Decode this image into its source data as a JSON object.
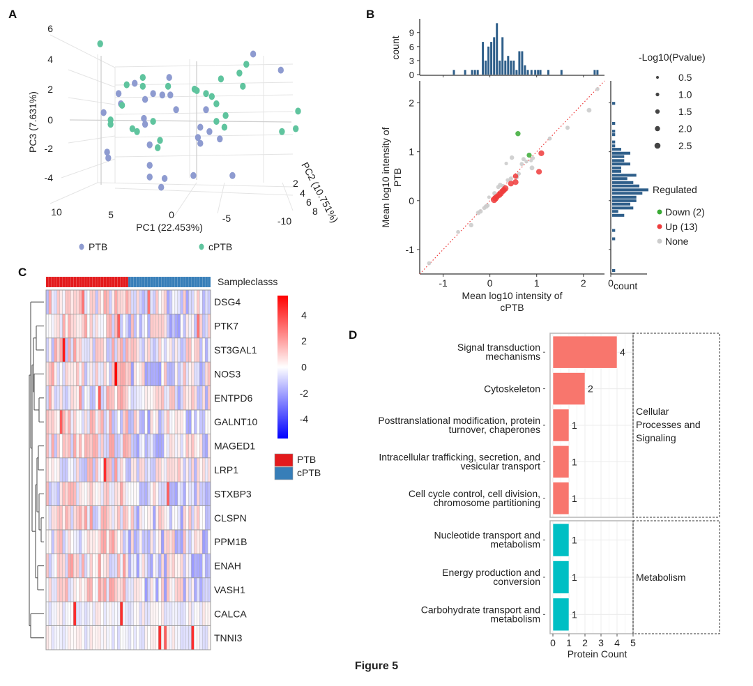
{
  "figure_caption": "Figure 5",
  "chart_data": [
    {
      "panel": "A",
      "type": "scatter",
      "subtype": "3d-pca",
      "title": "",
      "xlabel": "PC1 (22.453%)",
      "ylabel": "PC3 (7.631%)",
      "zlabel": "PC2 (10.751%)",
      "x_ticks": [
        "10",
        "5",
        "0",
        "-5",
        "-10"
      ],
      "y_ticks": [
        "6",
        "4",
        "2",
        "0",
        "-2",
        "-4"
      ],
      "z_ticks": [
        "2",
        "4",
        "6",
        "8"
      ],
      "xlim": [
        10,
        -10
      ],
      "ylim": [
        -5,
        6
      ],
      "legend": [
        {
          "label": "PTB",
          "color": "#8e9bd0"
        },
        {
          "label": "cPTB",
          "color": "#5fc49e"
        }
      ],
      "legend_position": "bottom",
      "series": [
        {
          "name": "PTB",
          "points": [
            [
              -7.1,
              4.5
            ],
            [
              -9.5,
              3.4
            ],
            [
              3.2,
              2.5
            ],
            [
              4.6,
              1.8
            ],
            [
              1.6,
              1.8
            ],
            [
              0.2,
              2.9
            ],
            [
              2.3,
              1.4
            ],
            [
              0.8,
              1.7
            ],
            [
              0.1,
              1.7
            ],
            [
              4.4,
              1.1
            ],
            [
              -0.4,
              0.7
            ],
            [
              -3.0,
              0.7
            ],
            [
              5.9,
              0.5
            ],
            [
              2.4,
              0.1
            ],
            [
              2.3,
              -0.3
            ],
            [
              -2.5,
              -0.5
            ],
            [
              -3.3,
              -0.8
            ],
            [
              -4.2,
              -1.3
            ],
            [
              -2.3,
              -1.2
            ],
            [
              -2.5,
              -1.6
            ],
            [
              1.9,
              -1.7
            ],
            [
              5.6,
              -2.2
            ],
            [
              5.5,
              -2.6
            ],
            [
              1.9,
              -3.1
            ],
            [
              1.9,
              -3.9
            ],
            [
              0.6,
              -4.0
            ],
            [
              -1.9,
              -3.8
            ],
            [
              -5.3,
              -3.8
            ],
            [
              0.9,
              -4.6
            ]
          ]
        },
        {
          "name": "cPTB",
          "points": [
            [
              6.2,
              5.2
            ],
            [
              -6.5,
              3.8
            ],
            [
              -5.9,
              3.2
            ],
            [
              -4.3,
              2.8
            ],
            [
              -6.2,
              2.3
            ],
            [
              2.5,
              2.9
            ],
            [
              2.5,
              2.3
            ],
            [
              0.3,
              2.3
            ],
            [
              3.9,
              2.4
            ],
            [
              -2.0,
              2.1
            ],
            [
              -2.2,
              2.0
            ],
            [
              -3.0,
              1.8
            ],
            [
              -3.5,
              1.6
            ],
            [
              -3.9,
              1.1
            ],
            [
              4.3,
              1.0
            ],
            [
              -11.0,
              0.6
            ],
            [
              -4.7,
              0.3
            ],
            [
              5.3,
              0.0
            ],
            [
              1.6,
              -0.1
            ],
            [
              -3.9,
              -0.1
            ],
            [
              -4.6,
              -0.5
            ],
            [
              5.3,
              -0.3
            ],
            [
              3.4,
              -0.6
            ],
            [
              3.0,
              -0.8
            ],
            [
              -9.6,
              -0.8
            ],
            [
              -10.8,
              -0.6
            ],
            [
              1.0,
              -1.4
            ],
            [
              1.2,
              -1.9
            ]
          ]
        }
      ]
    },
    {
      "panel": "B",
      "type": "scatter",
      "xlabel": "Mean log10 intensity of cPTB",
      "ylabel": "Mean log10 intensity of PTB",
      "xlim": [
        -1.5,
        2.45
      ],
      "ylim": [
        -1.5,
        2.45
      ],
      "x_ticks": [
        "-1",
        "0",
        "1",
        "2"
      ],
      "y_ticks": [
        "-1",
        "0",
        "1",
        "2"
      ],
      "reference_line": "y = x (red dotted)",
      "size_legend_title": "-Log10(Pvalue)",
      "size_legend": [
        "0.5",
        "1.0",
        "1.5",
        "2.0",
        "2.5"
      ],
      "color_legend_title": "Regulated",
      "color_legend": [
        {
          "label": "Down (2)",
          "color": "#3aaa35"
        },
        {
          "label": "Up (13)",
          "color": "#ee3b3b"
        },
        {
          "label": "None",
          "color": "#cccccc"
        }
      ],
      "legend_position": "right",
      "series": [
        {
          "name": "Down",
          "color": "#3aaa35",
          "points": [
            [
              0.6,
              1.37,
              1.6
            ],
            [
              0.84,
              0.93,
              1.5
            ]
          ]
        },
        {
          "name": "Up",
          "color": "#ee3b3b",
          "points": [
            [
              1.1,
              0.97,
              2.0
            ],
            [
              1.05,
              0.59,
              1.9
            ],
            [
              0.55,
              0.5,
              1.7
            ],
            [
              0.55,
              0.38,
              2.0
            ],
            [
              0.45,
              0.35,
              1.9
            ],
            [
              0.33,
              0.25,
              2.2
            ],
            [
              0.28,
              0.2,
              2.1
            ],
            [
              0.23,
              0.15,
              2.3
            ],
            [
              0.2,
              0.12,
              2.2
            ],
            [
              0.15,
              0.08,
              2.0
            ],
            [
              0.12,
              0.05,
              2.4
            ],
            [
              0.09,
              0.02,
              2.5
            ],
            [
              0.3,
              0.22,
              2.0
            ]
          ]
        },
        {
          "name": "None",
          "color": "#cccccc",
          "points": [
            [
              2.12,
              1.85,
              1.4
            ],
            [
              1.66,
              1.49,
              1.1
            ],
            [
              1.28,
              1.27,
              1.0
            ],
            [
              2.3,
              2.28,
              0.9
            ],
            [
              0.47,
              0.88,
              1.2
            ],
            [
              0.35,
              0.76,
              0.8
            ],
            [
              0.9,
              0.67,
              1.4
            ],
            [
              0.78,
              0.8,
              0.9
            ],
            [
              0.68,
              0.75,
              1.0
            ],
            [
              0.88,
              0.82,
              0.8
            ],
            [
              0.92,
              0.87,
              0.9
            ],
            [
              0.72,
              0.85,
              1.1
            ],
            [
              0.62,
              0.55,
              0.9
            ],
            [
              0.58,
              0.48,
              1.0
            ],
            [
              0.45,
              0.45,
              1.2
            ],
            [
              0.38,
              0.42,
              0.9
            ],
            [
              0.28,
              0.3,
              1.0
            ],
            [
              0.22,
              0.32,
              1.3
            ],
            [
              0.18,
              0.28,
              1.1
            ],
            [
              0.1,
              0.15,
              1.2
            ],
            [
              -0.02,
              0.07,
              0.7
            ],
            [
              -0.05,
              -0.1,
              1.1
            ],
            [
              -0.08,
              -0.12,
              1.3
            ],
            [
              -0.12,
              -0.15,
              1.0
            ],
            [
              -0.2,
              -0.22,
              1.2
            ],
            [
              -0.25,
              -0.25,
              1.2
            ],
            [
              -0.4,
              -0.5,
              1.2
            ],
            [
              -0.68,
              -0.64,
              0.9
            ],
            [
              -1.3,
              -1.28,
              1.0
            ]
          ]
        }
      ],
      "top_histogram": {
        "ylabel": "count",
        "y_ticks": [
          "0",
          "3",
          "6",
          "9"
        ],
        "bin_centers": [
          -0.77,
          -0.53,
          -0.38,
          -0.32,
          -0.26,
          -0.15,
          -0.09,
          -0.03,
          0.03,
          0.09,
          0.15,
          0.21,
          0.27,
          0.33,
          0.39,
          0.45,
          0.51,
          0.57,
          0.63,
          0.69,
          0.75,
          0.81,
          0.89,
          0.97,
          1.03,
          1.08,
          1.25,
          1.53,
          2.24,
          2.3
        ],
        "counts": [
          1,
          1,
          1,
          1,
          1,
          7,
          3,
          6,
          7,
          8,
          11,
          3,
          8,
          3,
          4,
          3,
          3,
          1,
          5,
          5,
          2,
          1,
          1,
          1,
          1,
          1,
          1,
          1,
          1,
          1
        ]
      },
      "right_histogram": {
        "xlabel": "count",
        "x_ticks": [
          "0"
        ],
        "bin_centers": [
          -1.43,
          -0.78,
          -0.61,
          -0.3,
          -0.22,
          -0.15,
          -0.07,
          0.0,
          0.07,
          0.15,
          0.22,
          0.3,
          0.37,
          0.45,
          0.52,
          0.6,
          0.67,
          0.75,
          0.82,
          0.9,
          0.97,
          1.05,
          1.12,
          1.2,
          1.35,
          1.42,
          1.58,
          1.99
        ],
        "counts": [
          1,
          1,
          1,
          4,
          2,
          7,
          6,
          8,
          8,
          10,
          12,
          9,
          7,
          5,
          8,
          3,
          3,
          6,
          4,
          4,
          6,
          3,
          1,
          1,
          1,
          1,
          1,
          1
        ]
      }
    },
    {
      "panel": "C",
      "type": "heatmap",
      "annotation_title": "Sampleclasss",
      "rows": [
        "DSG4",
        "PTK7",
        "ST3GAL1",
        "NOS3",
        "ENTPD6",
        "GALNT10",
        "MAGED1",
        "LRP1",
        "STXBP3",
        "CLSPN",
        "PPM1B",
        "ENAH",
        "VASH1",
        "CALCA",
        "TNNI3"
      ],
      "n_columns": 60,
      "n_PTB": 30,
      "n_cPTB": 30,
      "colorbar_ticks": [
        "4",
        "2",
        "0",
        "-2",
        "-4"
      ],
      "color_range": [
        -5.5,
        5.5
      ],
      "colorbar_colors": {
        "low": "#0000ff",
        "mid": "#ffffff",
        "high": "#ff0000"
      },
      "class_legend": [
        {
          "label": "PTB",
          "color": "#e31a1c"
        },
        {
          "label": "cPTB",
          "color": "#377eb8"
        }
      ],
      "highlights": [
        {
          "row": "ST3GAL1",
          "col": 6,
          "value": 5.0
        },
        {
          "row": "NOS3",
          "col": 25,
          "value": 5.5
        },
        {
          "row": "LRP1",
          "col": 21,
          "value": 4.5
        },
        {
          "row": "STXBP3",
          "col": 44,
          "value": 3.5
        },
        {
          "row": "CALCA",
          "col": 10,
          "value": 4.5
        },
        {
          "row": "CALCA",
          "col": 27,
          "value": 4.5
        },
        {
          "row": "TNNI3",
          "col": 41,
          "value": 4.5
        },
        {
          "row": "TNNI3",
          "col": 43,
          "value": 3.5
        },
        {
          "row": "TNNI3",
          "col": 53,
          "value": 4.5
        },
        {
          "row": "DSG4",
          "col": 13,
          "value": 3.0
        },
        {
          "row": "DSG4",
          "col": 37,
          "value": 3.0
        },
        {
          "row": "PTK7",
          "col": 26,
          "value": 3.5
        },
        {
          "row": "PTK7",
          "col": 55,
          "value": 3.0
        },
        {
          "row": "ENTPD6",
          "col": 19,
          "value": 3.5
        },
        {
          "row": "GALNT10",
          "col": 5,
          "value": 3.5
        }
      ]
    },
    {
      "panel": "D",
      "type": "bar",
      "orientation": "horizontal",
      "xlabel": "Protein Count",
      "x_ticks": [
        "0",
        "1",
        "2",
        "3",
        "4",
        "5"
      ],
      "xlim": [
        0,
        5
      ],
      "groups": [
        {
          "name": "Cellular Processes and Signaling",
          "color": "#f8766d",
          "categories": [
            "Signal transduction mechanisms",
            "Cytoskeleton",
            "Posttranslational modification, protein turnover, chaperones",
            "Intracellular trafficking, secretion, and vesicular transport",
            "Cell cycle control, cell division, chromosome partitioning"
          ],
          "values": [
            4,
            2,
            1,
            1,
            1
          ]
        },
        {
          "name": "Metabolism",
          "color": "#00bfc4",
          "categories": [
            "Nucleotide transport and metabolism",
            "Energy production and conversion",
            "Carbohydrate transport and metabolism"
          ],
          "values": [
            1,
            1,
            1
          ]
        }
      ]
    }
  ]
}
